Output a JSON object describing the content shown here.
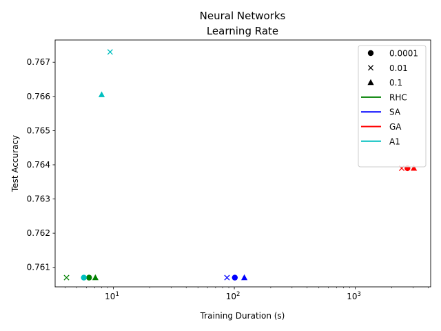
{
  "chart_data": {
    "type": "scatter",
    "title": "Neural Networks",
    "subtitle": "Learning Rate",
    "xlabel": "Training Duration (s)",
    "ylabel": "Test Accuracy",
    "xscale": "log",
    "xlim": [
      3.3,
      4200
    ],
    "ylim": [
      0.76043,
      0.76765
    ],
    "x_ticks": [
      {
        "value": 10,
        "label": "10",
        "exp": "1"
      },
      {
        "value": 100,
        "label": "10",
        "exp": "2"
      },
      {
        "value": 1000,
        "label": "10",
        "exp": "3"
      }
    ],
    "y_ticks": [
      {
        "value": 0.761,
        "label": "0.761"
      },
      {
        "value": 0.762,
        "label": "0.762"
      },
      {
        "value": 0.763,
        "label": "0.763"
      },
      {
        "value": 0.764,
        "label": "0.764"
      },
      {
        "value": 0.765,
        "label": "0.765"
      },
      {
        "value": 0.766,
        "label": "0.766"
      },
      {
        "value": 0.767,
        "label": "0.767"
      }
    ],
    "grid": false,
    "legend_position": "top-right",
    "marker_legend": [
      {
        "label": "0.0001",
        "marker": "circle"
      },
      {
        "label": "0.01",
        "marker": "x"
      },
      {
        "label": "0.1",
        "marker": "triangle"
      }
    ],
    "series": [
      {
        "name": "RHC",
        "color": "#008000",
        "points": [
          {
            "x": 6.3,
            "y": 0.7607,
            "marker": "circle"
          },
          {
            "x": 4.1,
            "y": 0.7607,
            "marker": "x"
          },
          {
            "x": 7.1,
            "y": 0.7607,
            "marker": "triangle"
          }
        ]
      },
      {
        "name": "SA",
        "color": "#0000ff",
        "points": [
          {
            "x": 101,
            "y": 0.7607,
            "marker": "circle"
          },
          {
            "x": 87,
            "y": 0.7607,
            "marker": "x"
          },
          {
            "x": 121,
            "y": 0.7607,
            "marker": "triangle"
          }
        ]
      },
      {
        "name": "GA",
        "color": "#ff0000",
        "points": [
          {
            "x": 2700,
            "y": 0.7639,
            "marker": "circle"
          },
          {
            "x": 2420,
            "y": 0.7639,
            "marker": "x"
          },
          {
            "x": 3050,
            "y": 0.7639,
            "marker": "triangle"
          }
        ]
      },
      {
        "name": "A1",
        "color": "#00bfbf",
        "points": [
          {
            "x": 5.7,
            "y": 0.7607,
            "marker": "circle"
          },
          {
            "x": 9.4,
            "y": 0.7673,
            "marker": "x"
          },
          {
            "x": 8.0,
            "y": 0.76605,
            "marker": "triangle"
          }
        ]
      }
    ]
  }
}
